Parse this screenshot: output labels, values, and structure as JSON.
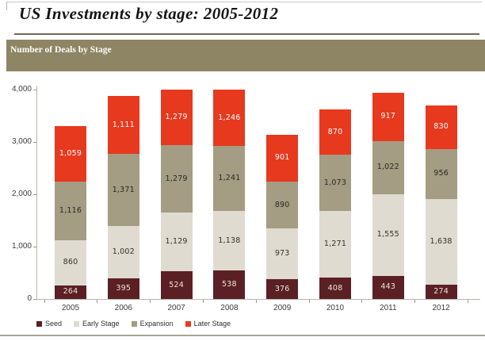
{
  "page": {
    "title": "US Investments by stage: 2005-2012",
    "section_header": "Number of Deals by Stage"
  },
  "theme": {
    "section_bar_bg": "#8e8565",
    "title_rule": "#6e6753",
    "axis_color": "#b9b5ac",
    "bottom_rule": "#a8a399"
  },
  "chart_data": {
    "type": "bar",
    "stacked": true,
    "title": "Number of Deals by Stage",
    "xlabel": "",
    "ylabel": "",
    "categories": [
      "2005",
      "2006",
      "2007",
      "2008",
      "2009",
      "2010",
      "2011",
      "2012"
    ],
    "series": [
      {
        "name": "Seed",
        "color": "#5b2023",
        "label_color": "#eee3d6",
        "values": [
          264,
          395,
          524,
          538,
          376,
          408,
          443,
          274
        ]
      },
      {
        "name": "Early Stage",
        "color": "#dfdbd0",
        "label_color": "#35312a",
        "values": [
          860,
          1002,
          1129,
          1138,
          973,
          1271,
          1555,
          1638
        ]
      },
      {
        "name": "Expansion",
        "color": "#a49c83",
        "label_color": "#2c2820",
        "values": [
          1116,
          1371,
          1279,
          1241,
          890,
          1073,
          1022,
          956
        ]
      },
      {
        "name": "Later Stage",
        "color": "#e6391e",
        "label_color": "#ffffff",
        "values": [
          1059,
          1111,
          1279,
          1246,
          901,
          870,
          917,
          830
        ]
      }
    ],
    "ylim": [
      0,
      4000
    ],
    "ytick_step": 1000,
    "ytick_labels": [
      "0",
      "1,000",
      "2,000",
      "3,000",
      "4,000"
    ],
    "grid": false,
    "legend_position": "bottom",
    "note": "2007 and 2008 stacks exceed the 4,000 axis maximum and are clipped at the top of the plot"
  }
}
